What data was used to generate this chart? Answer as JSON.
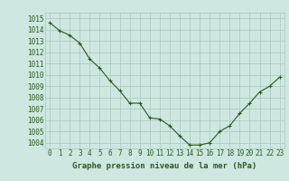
{
  "x": [
    0,
    1,
    2,
    3,
    4,
    5,
    6,
    7,
    8,
    9,
    10,
    11,
    12,
    13,
    14,
    15,
    16,
    17,
    18,
    19,
    20,
    21,
    22,
    23
  ],
  "y": [
    1014.6,
    1013.9,
    1013.5,
    1012.8,
    1011.4,
    1010.6,
    1009.5,
    1008.6,
    1007.5,
    1007.5,
    1006.2,
    1006.1,
    1005.5,
    1004.6,
    1003.8,
    1003.8,
    1004.0,
    1005.0,
    1005.5,
    1006.6,
    1007.5,
    1008.5,
    1009.0,
    1009.8
  ],
  "line_color": "#2d5a1b",
  "marker": "+",
  "marker_size": 3,
  "line_width": 0.8,
  "bg_color": "#cce8e0",
  "grid_color": "#aac8c0",
  "xlabel": "Graphe pression niveau de la mer (hPa)",
  "xlabel_color": "#2d5a1b",
  "ylabel_ticks": [
    1004,
    1005,
    1006,
    1007,
    1008,
    1009,
    1010,
    1011,
    1012,
    1013,
    1014,
    1015
  ],
  "ylim": [
    1003.5,
    1015.5
  ],
  "xlim": [
    -0.5,
    23.5
  ],
  "xtick_labels": [
    "0",
    "1",
    "2",
    "3",
    "4",
    "5",
    "6",
    "7",
    "8",
    "9",
    "10",
    "11",
    "12",
    "13",
    "14",
    "15",
    "16",
    "17",
    "18",
    "19",
    "20",
    "21",
    "22",
    "23"
  ],
  "tick_color": "#2d5a1b",
  "tick_fontsize": 5.5,
  "xlabel_fontsize": 6.5,
  "marker_edge_width": 0.8
}
